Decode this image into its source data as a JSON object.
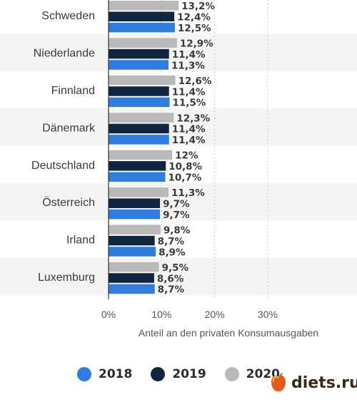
{
  "chart_data": {
    "type": "bar",
    "orientation": "horizontal",
    "categories": [
      "Schweden",
      "Niederlande",
      "Finnland",
      "Dänemark",
      "Deutschland",
      "Österreich",
      "Irland",
      "Luxemburg"
    ],
    "series": [
      {
        "name": "2020",
        "color": "#b9b9b9",
        "values": [
          13.2,
          12.9,
          12.6,
          12.3,
          12,
          11.3,
          9.8,
          9.5
        ],
        "labels": [
          "13,2%",
          "12,9%",
          "12,6%",
          "12,3%",
          "12%",
          "11,3%",
          "9,8%",
          "9,5%"
        ]
      },
      {
        "name": "2019",
        "color": "#0f2540",
        "values": [
          12.4,
          11.4,
          11.4,
          11.4,
          10.8,
          9.7,
          8.7,
          8.6
        ],
        "labels": [
          "12,4%",
          "11,4%",
          "11,4%",
          "11,4%",
          "10,8%",
          "9,7%",
          "8,7%",
          "8,6%"
        ]
      },
      {
        "name": "2018",
        "color": "#2f7de0",
        "values": [
          12.5,
          11.3,
          11.5,
          11.4,
          10.7,
          9.7,
          8.9,
          8.7
        ],
        "labels": [
          "12,5%",
          "11,3%",
          "11,5%",
          "11,4%",
          "10,7%",
          "9,7%",
          "8,9%",
          "8,7%"
        ]
      }
    ],
    "xlim": [
      0,
      30
    ],
    "xticks": [
      0,
      10,
      20,
      30
    ],
    "xtick_labels": [
      "0%",
      "10%",
      "20%",
      "30%"
    ],
    "xlabel": "Anteil an den privaten Konsumausgaben",
    "grid": "vertical dashed",
    "legend": {
      "position": "bottom",
      "entries": [
        {
          "name": "2018",
          "color": "#2f7de0"
        },
        {
          "name": "2019",
          "color": "#0f2540"
        },
        {
          "name": "2020",
          "color": "#b9b9b9"
        }
      ]
    }
  },
  "watermark": {
    "text": "diets.ru",
    "icon": "apple-icon"
  }
}
